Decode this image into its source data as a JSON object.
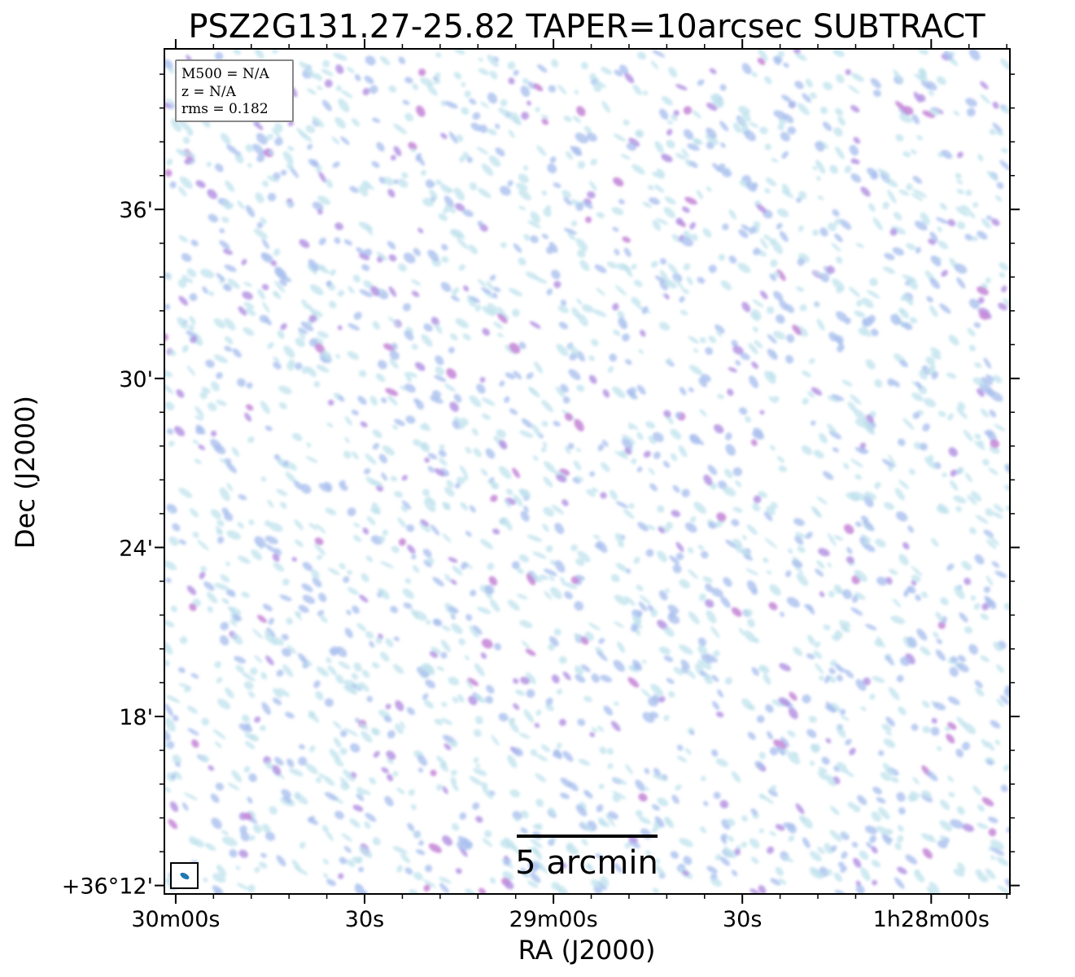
{
  "chart_data": {
    "type": "heatmap",
    "title": "PSZ2G131.27-25.82 TAPER=10arcsec SUBTRACT",
    "xlabel": "RA (J2000)",
    "ylabel": "Dec (J2000)",
    "x_ticks": [
      {
        "label": "30m00s",
        "ra_sec": 0
      },
      {
        "label": "30s",
        "ra_sec": 30
      },
      {
        "label": "29m00s",
        "ra_sec": 60
      },
      {
        "label": "30s",
        "ra_sec": 90
      },
      {
        "label": "1h28m00s",
        "ra_sec": 120
      }
    ],
    "y_ticks": [
      {
        "label": "+36°12'",
        "dec_arcmin": 12
      },
      {
        "label": "18'",
        "dec_arcmin": 18
      },
      {
        "label": "24'",
        "dec_arcmin": 24
      },
      {
        "label": "30'",
        "dec_arcmin": 30
      },
      {
        "label": "36'",
        "dec_arcmin": 36
      }
    ],
    "x_range_ra_sec": [
      -1.8,
      132.5
    ],
    "y_range_dec_arcmin": [
      11.7,
      41.7
    ],
    "info_box": {
      "lines": [
        "M500 = N/A",
        "z = N/A",
        "rms = 0.182"
      ],
      "placement": "top-left"
    },
    "scale_bar": {
      "label": "5 arcmin",
      "length_arcmin": 5,
      "placement": "bottom-center"
    },
    "beam": {
      "placement": "bottom-left",
      "color": "#1f77b4"
    },
    "colors": {
      "low": "#bfe2ec",
      "mid": "#a9bfee",
      "high": "#b493e3",
      "peak": "#c88ad8"
    },
    "grid": false
  }
}
